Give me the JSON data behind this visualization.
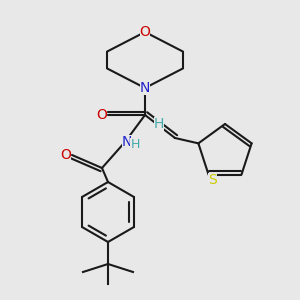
{
  "bg_color": "#e8e8e8",
  "bond_color": "#1a1a1a",
  "lw": 1.5,
  "figsize": [
    3.0,
    3.0
  ],
  "dpi": 100,
  "colors": {
    "O": "#cc0000",
    "N": "#2222cc",
    "S": "#cccc00",
    "H": "#44aaaa",
    "C": "#1a1a1a"
  }
}
